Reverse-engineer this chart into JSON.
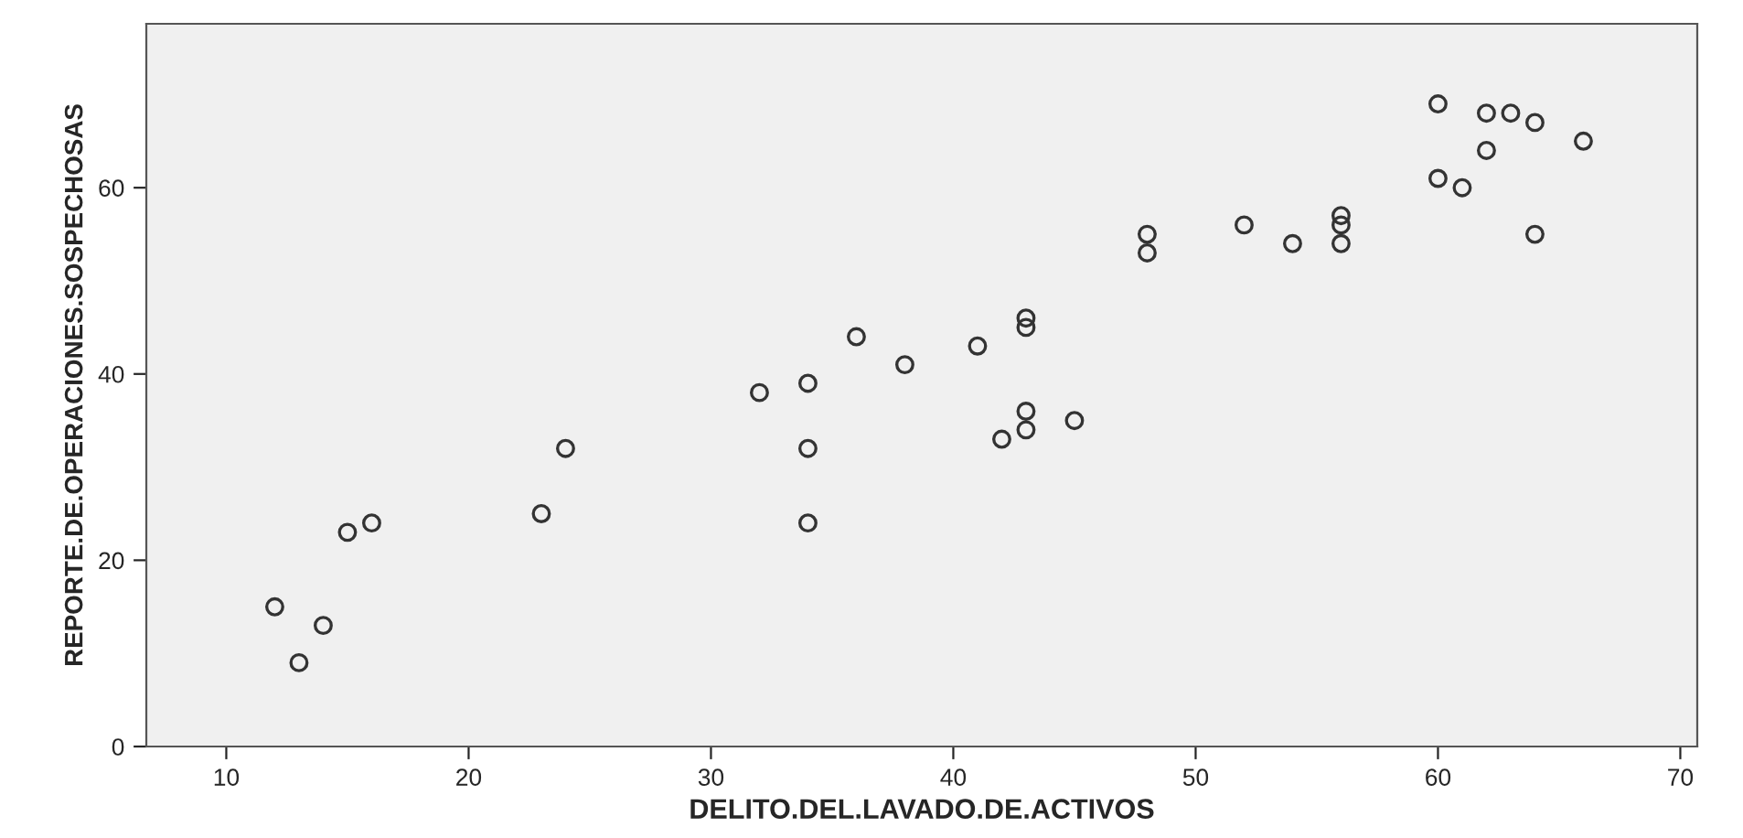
{
  "chart_data": {
    "type": "scatter",
    "xlabel": "DELITO.DEL.LAVADO.DE.ACTIVOS",
    "ylabel": "REPORTE.DE.OPERACIONES.SOSPECHOSAS",
    "x": [
      12,
      13,
      14,
      15,
      16,
      23,
      24,
      32,
      34,
      34,
      34,
      36,
      38,
      41,
      42,
      43,
      43,
      43,
      43,
      45,
      48,
      48,
      52,
      54,
      56,
      56,
      56,
      60,
      60,
      61,
      62,
      62,
      63,
      64,
      64,
      66
    ],
    "values": [
      15,
      9,
      13,
      23,
      24,
      25,
      32,
      38,
      39,
      32,
      24,
      44,
      41,
      43,
      33,
      46,
      45,
      36,
      34,
      35,
      55,
      53,
      56,
      54,
      57,
      56,
      54,
      69,
      61,
      60,
      68,
      64,
      68,
      67,
      55,
      65
    ],
    "color": "#333333",
    "marker": "circle",
    "xlim": [
      6.7,
      70.7
    ],
    "ylim": [
      0,
      77.6
    ],
    "xticks": [
      10,
      20,
      30,
      40,
      50,
      60,
      70
    ],
    "yticks": [
      0,
      20,
      40,
      60
    ],
    "grid": false
  }
}
